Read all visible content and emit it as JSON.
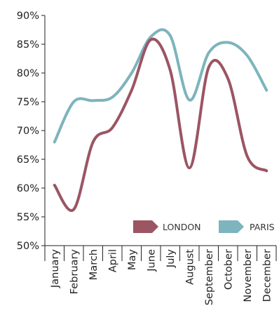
{
  "chart_data": {
    "type": "line",
    "categories": [
      "January",
      "February",
      "March",
      "April",
      "May",
      "June",
      "July",
      "August",
      "September",
      "October",
      "November",
      "December"
    ],
    "series": [
      {
        "name": "LONDON",
        "color": "#9b5563",
        "values": [
          60.5,
          56.3,
          68,
          70.5,
          77,
          85.8,
          80.5,
          63.5,
          81,
          79,
          65.5,
          63
        ]
      },
      {
        "name": "PARIS",
        "color": "#7db4bd",
        "values": [
          68,
          75,
          75.2,
          75.8,
          80,
          86.3,
          86.5,
          75.3,
          83.5,
          85.3,
          83,
          77
        ]
      }
    ],
    "ylim": [
      50,
      90
    ],
    "yticks": [
      50,
      55,
      60,
      65,
      70,
      75,
      80,
      85,
      90
    ],
    "ytick_labels": [
      "50%",
      "55%",
      "60%",
      "65%",
      "70%",
      "75%",
      "80%",
      "85%",
      "90%"
    ],
    "title": "",
    "xlabel": "",
    "ylabel": "",
    "legend": {
      "position": "bottom-right",
      "entries": [
        "LONDON",
        "PARIS"
      ]
    },
    "grid": false
  }
}
